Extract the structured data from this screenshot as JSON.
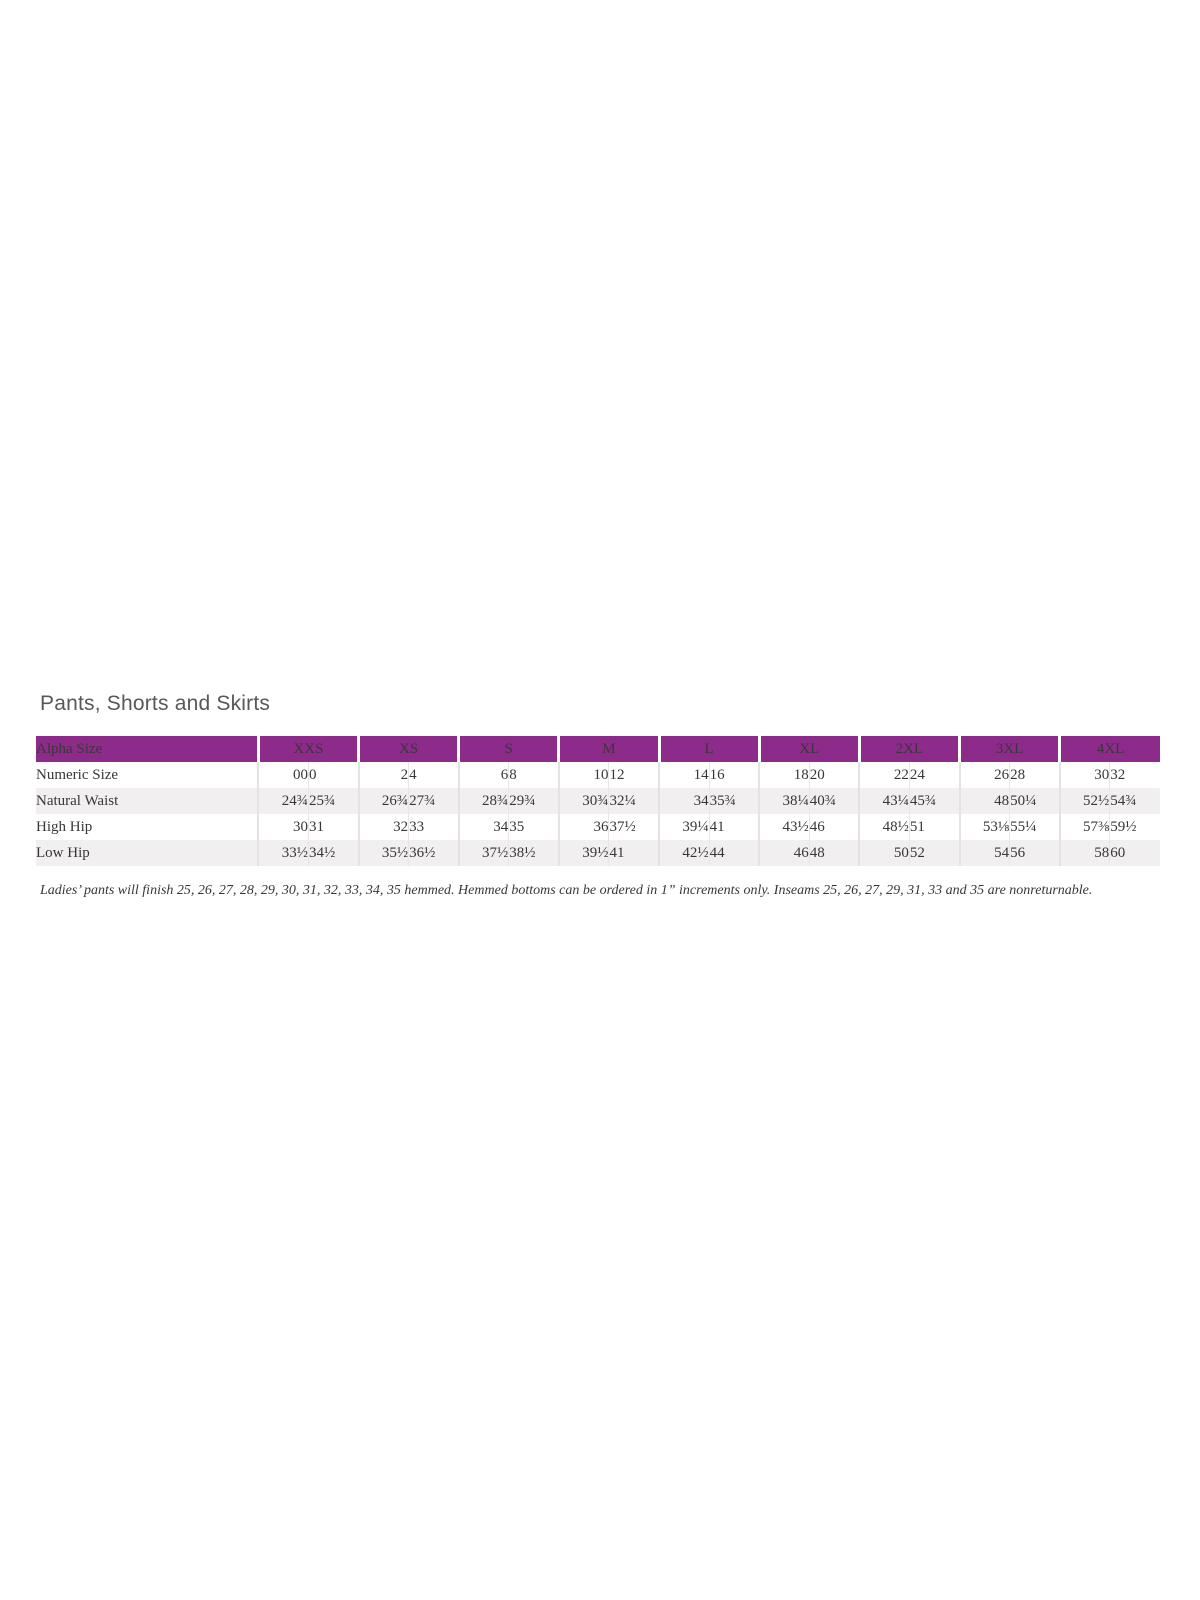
{
  "page": {
    "title": "Pants, Shorts and Skirts",
    "footnote": "Ladies’ pants will finish 25, 26, 27, 28, 29, 30, 31, 32, 33, 34, 35 hemmed. Hemmed bottoms can be ordered in 1” increments only. Inseams 25, 26, 27, 29, 31, 33 and 35 are nonreturnable."
  },
  "colors": {
    "header_purple": "#8d2b8b",
    "header_text": "#ffffff",
    "row_shade": "#f1efef",
    "table_text": "#3a3637",
    "title_gray": "#58585a",
    "divider_gray": "#e4e2e2"
  },
  "size_chart": {
    "corner_label": "Alpha Size",
    "groups": [
      "XXS",
      "XS",
      "S",
      "M",
      "L",
      "XL",
      "2XL",
      "3XL",
      "4XL"
    ],
    "rows": [
      {
        "label": "Numeric Size",
        "values": [
          "00",
          "0",
          "2",
          "4",
          "6",
          "8",
          "10",
          "12",
          "14",
          "16",
          "18",
          "20",
          "22",
          "24",
          "26",
          "28",
          "30",
          "32"
        ]
      },
      {
        "label": "Natural Waist",
        "values": [
          "24¾",
          "25¾",
          "26¾",
          "27¾",
          "28¾",
          "29¾",
          "30¾",
          "32¼",
          "34",
          "35¾",
          "38¼",
          "40¾",
          "43¼",
          "45¾",
          "48",
          "50¼",
          "52½",
          "54¾"
        ]
      },
      {
        "label": "High Hip",
        "values": [
          "30",
          "31",
          "32",
          "33",
          "34",
          "35",
          "36",
          "37½",
          "39¼",
          "41",
          "43½",
          "46",
          "48½",
          "51",
          "53⅛",
          "55¼",
          "57⅜",
          "59½"
        ]
      },
      {
        "label": "Low Hip",
        "values": [
          "33½",
          "34½",
          "35½",
          "36½",
          "37½",
          "38½",
          "39½",
          "41",
          "42½",
          "44",
          "46",
          "48",
          "50",
          "52",
          "54",
          "56",
          "58",
          "60"
        ]
      }
    ]
  }
}
